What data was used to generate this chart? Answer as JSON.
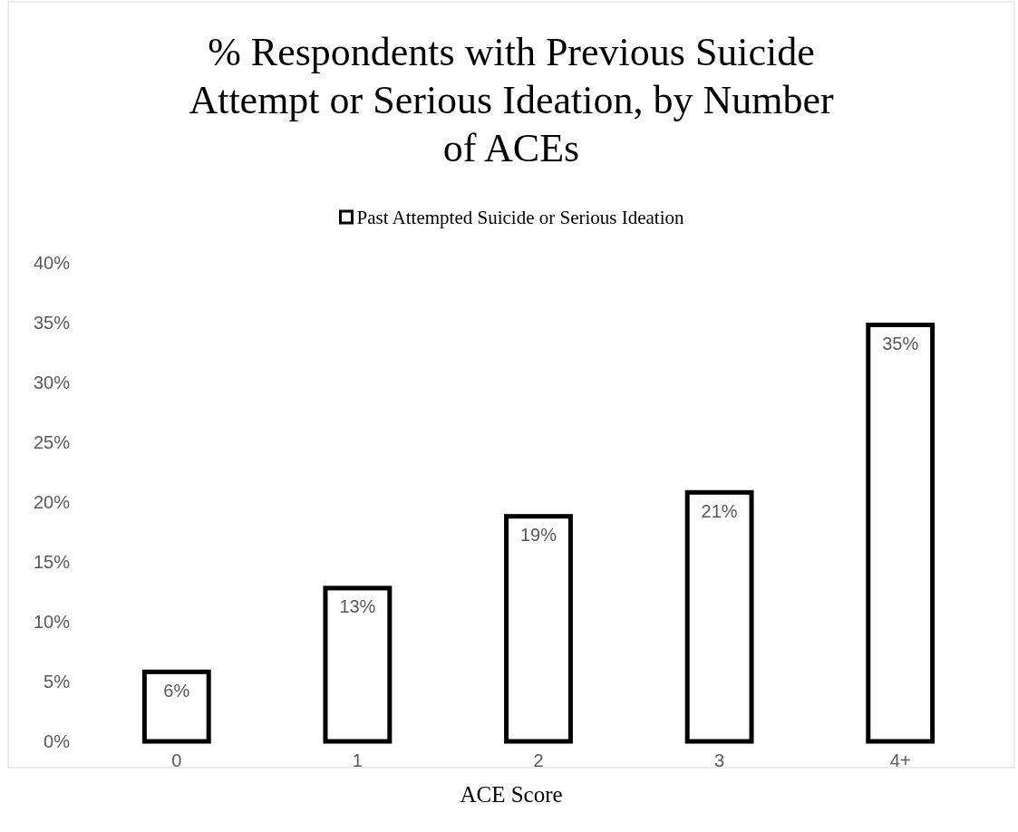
{
  "chart_data": {
    "type": "bar",
    "title": "% Respondents with Previous Suicide Attempt or Serious Ideation, by Number of ACEs",
    "xlabel": "ACE Score",
    "categories": [
      "0",
      "1",
      "2",
      "3",
      "4+"
    ],
    "series": [
      {
        "name": "Past Attempted Suicide or Serious Ideation",
        "color": "#000000",
        "values": [
          6,
          13,
          19,
          21,
          35
        ],
        "value_labels": [
          "6%",
          "13%",
          "19%",
          "21%",
          "35%"
        ]
      }
    ],
    "ylim": [
      0,
      40
    ],
    "yticks": [
      {
        "value": 0,
        "label": "0%"
      },
      {
        "value": 5,
        "label": "5%"
      },
      {
        "value": 10,
        "label": "10%"
      },
      {
        "value": 15,
        "label": "15%"
      },
      {
        "value": 20,
        "label": "20%"
      },
      {
        "value": 25,
        "label": "25%"
      },
      {
        "value": 30,
        "label": "30%"
      },
      {
        "value": 35,
        "label": "35%"
      },
      {
        "value": 40,
        "label": "40%"
      }
    ],
    "legend": "top",
    "grid": false
  }
}
